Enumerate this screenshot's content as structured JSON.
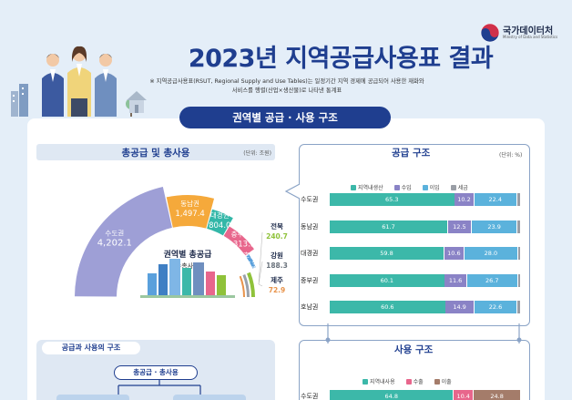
{
  "logo": {
    "org": "국가데이터처",
    "sub": "Ministry of Data and Statistics"
  },
  "title": "2023년 지역공급사용표 결과",
  "note_line1": "※ 지역공급사용표(RSUT, Regional Supply and Use Tables)는 일정기간 지역 경제에 공급되어 사용한 재화와",
  "note_line2": "서비스를 행렬(산업×생산물)로 나타낸 통계표",
  "section_title": "권역별 공급 · 사용 구조",
  "left_chart": {
    "title": "총공급 및 총사용",
    "unit": "(단위: 조원)",
    "center_label": "권역별 총공급",
    "center_sub": "(=총사용)"
  },
  "chart_data": [
    {
      "type": "pie",
      "title": "총공급 및 총사용",
      "unit": "(단위: 조원)",
      "categories": [
        "수도권",
        "동남권",
        "대경권",
        "충부권",
        "호남권",
        "전북",
        "강원",
        "제주"
      ],
      "values": [
        4202.1,
        1497.4,
        804.0,
        1313.5,
        653.3,
        240.7,
        188.3,
        72.9
      ],
      "value_labels": [
        "4,202.1",
        "1,497.4",
        "804.0",
        "1,313.5",
        "653.3",
        "240.7",
        "188.3",
        "72.9"
      ],
      "colors": [
        "#9e9fd6",
        "#f5a93b",
        "#33b7a8",
        "#e8668c",
        "#5aa0dc",
        "#8fc23a",
        "#9aa1aa",
        "#e8934a"
      ]
    },
    {
      "type": "bar",
      "title": "공급 구조",
      "unit": "(단위: %)",
      "categories": [
        "수도권",
        "동남권",
        "대경권",
        "중부권",
        "호남권"
      ],
      "series": [
        {
          "name": "지역내생산",
          "values": [
            65.3,
            61.7,
            59.8,
            60.1,
            60.6
          ]
        },
        {
          "name": "수입",
          "values": [
            10.2,
            12.5,
            10.6,
            11.6,
            14.9
          ]
        },
        {
          "name": "이입",
          "values": [
            22.4,
            23.9,
            28.0,
            26.7,
            22.6
          ]
        },
        {
          "name": "세금",
          "values": [
            2.1,
            1.9,
            1.6,
            1.6,
            1.9
          ]
        }
      ],
      "colors": [
        "#3cb8a9",
        "#8a83c6",
        "#5bb2dc",
        "#9a9ea6"
      ],
      "xlim": [
        0,
        100
      ]
    },
    {
      "type": "bar",
      "title": "사용 구조",
      "categories": [
        "수도권"
      ],
      "series": [
        {
          "name": "지역내사용",
          "values": [
            64.8
          ]
        },
        {
          "name": "수출",
          "values": [
            10.4
          ]
        },
        {
          "name": "이출",
          "values": [
            24.8
          ]
        }
      ],
      "colors": [
        "#3cb8a9",
        "#e8668c",
        "#a47c6a"
      ],
      "xlim": [
        0,
        100
      ]
    }
  ],
  "lower_left": {
    "title": "공급과 사용의 구조",
    "pill": "총공급 · 총사용"
  }
}
